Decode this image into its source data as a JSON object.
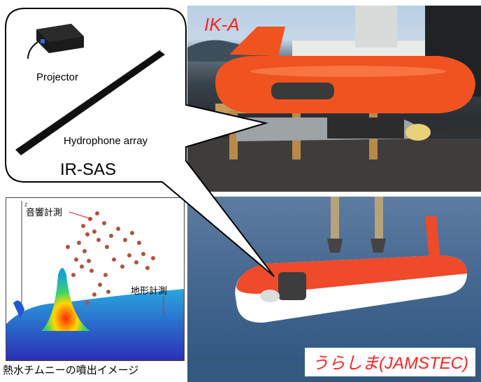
{
  "callout": {
    "projector_label": "Projector",
    "hydrophone_label": "Hydrophone array",
    "system_label": "IR-SAS"
  },
  "photo_top": {
    "label": "IK-A"
  },
  "photo_bottom": {
    "label": "うらしま(JAMSTEC)"
  },
  "plot": {
    "plume_label": "音響計測",
    "terrain_label": "地形計測",
    "axis_label": "z",
    "caption": "熱水チムニーの噴出イメージ"
  },
  "colors": {
    "accent_red": "#ff2020",
    "vehicle_orange": "#f0531f"
  }
}
